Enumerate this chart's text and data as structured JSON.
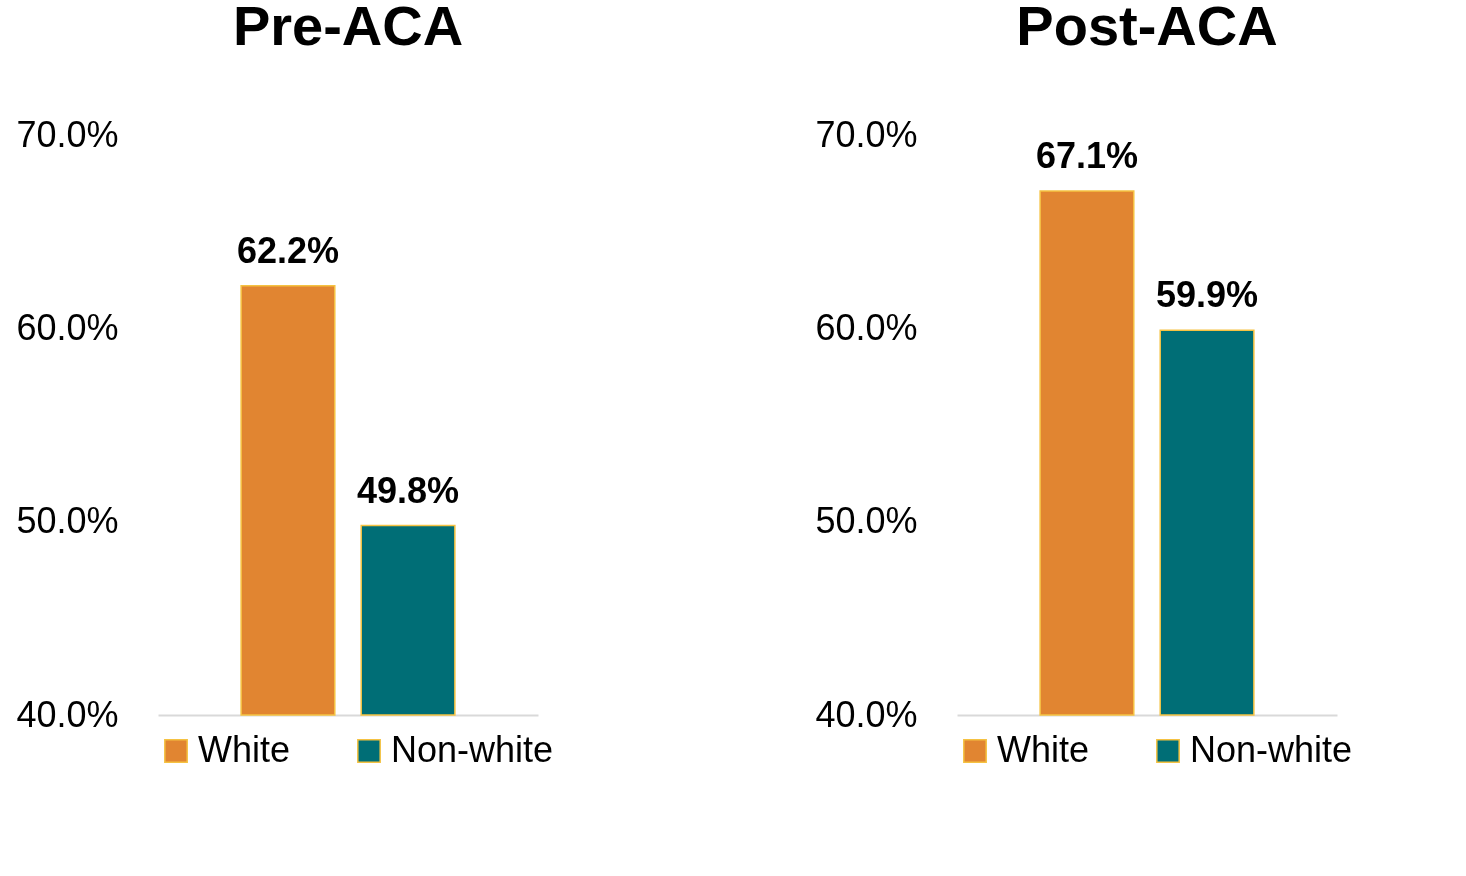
{
  "chart_data": [
    {
      "type": "bar",
      "title": "Pre-ACA",
      "categories": [
        null
      ],
      "series": [
        {
          "name": "White",
          "color": "#e18531",
          "values": [
            62.2
          ]
        },
        {
          "name": "Non-white",
          "color": "#006e76",
          "values": [
            49.8
          ]
        }
      ],
      "ylim": [
        40,
        70
      ],
      "yticks": [
        {
          "value": 40,
          "label": "40.0%"
        },
        {
          "value": 50,
          "label": "50.0%"
        },
        {
          "value": 60,
          "label": "60.0%"
        },
        {
          "value": 70,
          "label": "70.0%"
        }
      ],
      "value_labels": [
        [
          "62.2%"
        ],
        [
          "49.8%"
        ]
      ],
      "grid": false,
      "legend": "bottom",
      "tick_labels": "y"
    },
    {
      "type": "bar",
      "title": "Post-ACA",
      "categories": [
        null
      ],
      "series": [
        {
          "name": "White",
          "color": "#e18531",
          "values": [
            67.1
          ]
        },
        {
          "name": "Non-white",
          "color": "#006e76",
          "values": [
            59.9
          ]
        }
      ],
      "ylim": [
        40,
        70
      ],
      "yticks": [
        {
          "value": 40,
          "label": "40.0%"
        },
        {
          "value": 50,
          "label": "50.0%"
        },
        {
          "value": 60,
          "label": "60.0%"
        },
        {
          "value": 70,
          "label": "70.0%"
        }
      ],
      "value_labels": [
        [
          "67.1%"
        ],
        [
          "59.9%"
        ]
      ],
      "grid": false,
      "legend": "bottom",
      "tick_labels": "y"
    }
  ]
}
